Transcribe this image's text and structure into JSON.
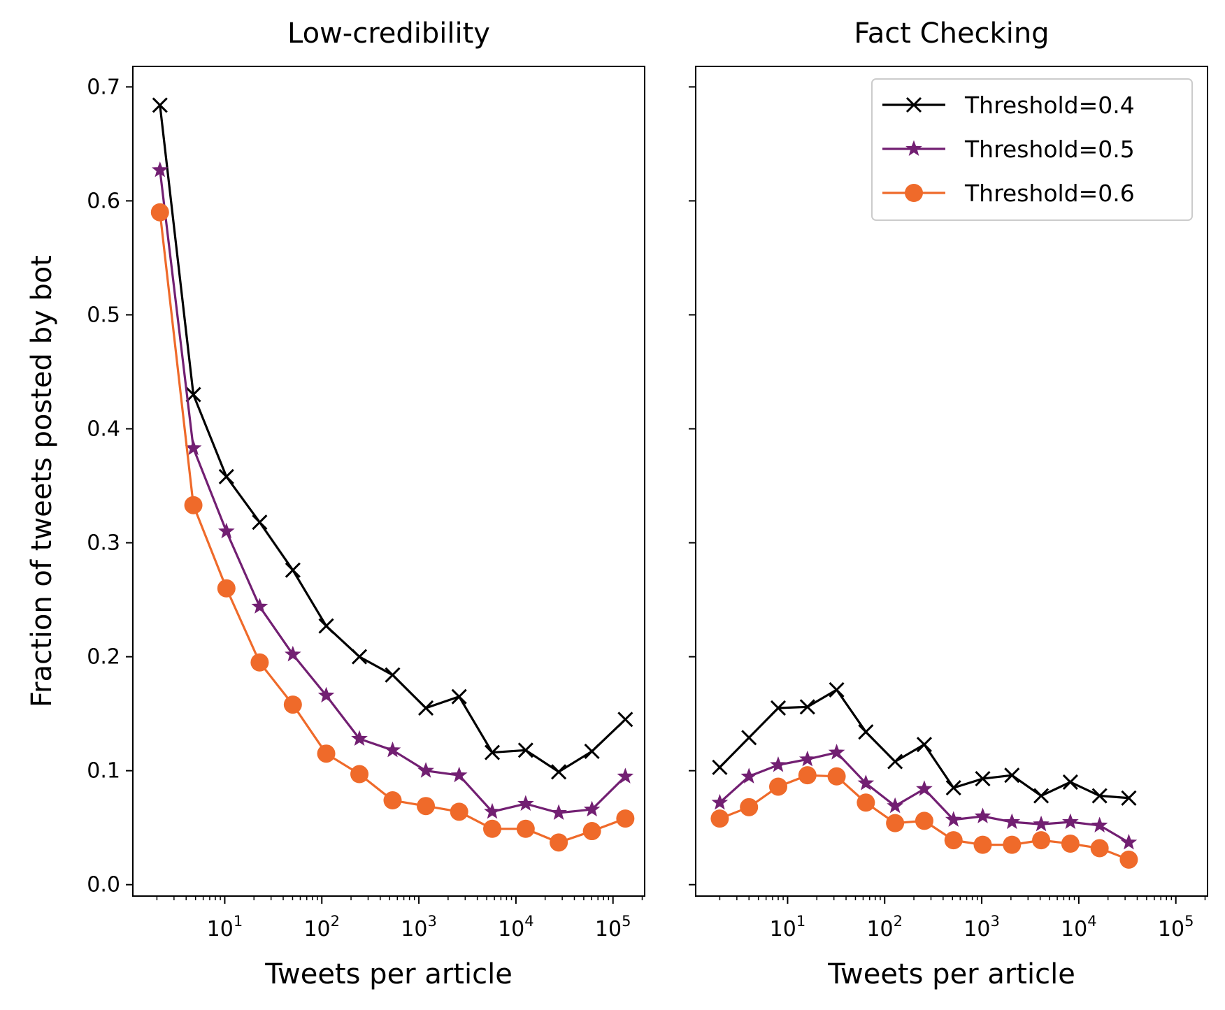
{
  "chart_data": [
    {
      "type": "line",
      "title": "Low-credibility",
      "xlabel": "Tweets per article",
      "ylabel": "Fraction of tweets posted by bot",
      "xscale": "log",
      "xlim": [
        1.13,
        212000
      ],
      "ylim": [
        -0.01,
        0.718
      ],
      "xticks": [
        {
          "base": "10",
          "exp": "1",
          "value": 10
        },
        {
          "base": "10",
          "exp": "2",
          "value": 100
        },
        {
          "base": "10",
          "exp": "3",
          "value": 1000
        },
        {
          "base": "10",
          "exp": "4",
          "value": 10000
        },
        {
          "base": "10",
          "exp": "5",
          "value": 100000
        }
      ],
      "yticks": [
        "0.0",
        "0.1",
        "0.2",
        "0.3",
        "0.4",
        "0.5",
        "0.6",
        "0.7"
      ],
      "grid": false,
      "legend": null,
      "x": [
        2.15,
        4.75,
        10.4,
        22.9,
        50.3,
        111,
        244,
        536,
        1180,
        2600,
        5700,
        12600,
        27600,
        60700,
        134000
      ],
      "series": [
        {
          "name": "Threshold=0.4",
          "color": "#000000",
          "marker": "x",
          "values": [
            0.684,
            0.43,
            0.358,
            0.318,
            0.276,
            0.227,
            0.2,
            0.184,
            0.155,
            0.165,
            0.116,
            0.118,
            0.099,
            0.117,
            0.145
          ]
        },
        {
          "name": "Threshold=0.5",
          "color": "#721f72",
          "marker": "star",
          "values": [
            0.627,
            0.383,
            0.31,
            0.244,
            0.202,
            0.166,
            0.128,
            0.118,
            0.1,
            0.096,
            0.064,
            0.071,
            0.063,
            0.066,
            0.095
          ]
        },
        {
          "name": "Threshold=0.6",
          "color": "#ef6a2a",
          "marker": "circle",
          "values": [
            0.59,
            0.333,
            0.26,
            0.195,
            0.158,
            0.115,
            0.097,
            0.074,
            0.069,
            0.064,
            0.049,
            0.049,
            0.037,
            0.047,
            0.058
          ]
        }
      ]
    },
    {
      "type": "line",
      "title": "Fact Checking",
      "xlabel": "Tweets per article",
      "ylabel": "",
      "xscale": "log",
      "xlim": [
        1.13,
        212000
      ],
      "ylim": [
        -0.01,
        0.718
      ],
      "xticks": [
        {
          "base": "10",
          "exp": "1",
          "value": 10
        },
        {
          "base": "10",
          "exp": "2",
          "value": 100
        },
        {
          "base": "10",
          "exp": "3",
          "value": 1000
        },
        {
          "base": "10",
          "exp": "4",
          "value": 10000
        },
        {
          "base": "10",
          "exp": "5",
          "value": 100000
        }
      ],
      "yticks": [],
      "grid": false,
      "legend": "top-right",
      "x": [
        2,
        4,
        8,
        16,
        32,
        64,
        128,
        256,
        512,
        1024,
        2048,
        4096,
        8192,
        16384,
        32768
      ],
      "series": [
        {
          "name": "Threshold=0.4",
          "color": "#000000",
          "marker": "x",
          "values": [
            0.103,
            0.129,
            0.155,
            0.156,
            0.171,
            0.134,
            0.108,
            0.123,
            0.085,
            0.093,
            0.096,
            0.078,
            0.09,
            0.078,
            0.076
          ]
        },
        {
          "name": "Threshold=0.5",
          "color": "#721f72",
          "marker": "star",
          "values": [
            0.072,
            0.095,
            0.105,
            0.11,
            0.116,
            0.089,
            0.069,
            0.084,
            0.057,
            0.06,
            0.055,
            0.053,
            0.055,
            0.052,
            0.037
          ]
        },
        {
          "name": "Threshold=0.6",
          "color": "#ef6a2a",
          "marker": "circle",
          "values": [
            0.058,
            0.068,
            0.086,
            0.096,
            0.095,
            0.072,
            0.054,
            0.056,
            0.039,
            0.035,
            0.035,
            0.039,
            0.036,
            0.032,
            0.022
          ]
        }
      ]
    }
  ]
}
